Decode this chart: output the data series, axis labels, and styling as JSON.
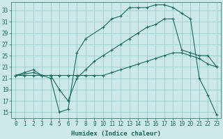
{
  "xlabel": "Humidex (Indice chaleur)",
  "bg_color": "#cce8e8",
  "grid_color": "#99cccc",
  "line_color": "#1a6b5e",
  "xlim": [
    -0.5,
    23.5
  ],
  "ylim": [
    14.0,
    34.5
  ],
  "xticks": [
    0,
    1,
    2,
    3,
    4,
    5,
    6,
    7,
    8,
    9,
    10,
    11,
    12,
    13,
    14,
    15,
    16,
    17,
    18,
    19,
    20,
    21,
    22,
    23
  ],
  "yticks": [
    15,
    17,
    19,
    21,
    23,
    25,
    27,
    29,
    31,
    33
  ],
  "curve1_x": [
    0,
    1,
    2,
    3,
    4,
    5,
    6,
    7,
    8,
    9,
    10,
    11,
    12,
    13,
    14,
    15,
    16,
    17,
    18,
    19,
    20,
    21,
    22,
    23
  ],
  "curve1_y": [
    21.5,
    22.0,
    22.5,
    21.5,
    21.5,
    19.0,
    17.0,
    21.0,
    22.5,
    24.0,
    25.0,
    26.0,
    27.0,
    28.0,
    29.0,
    30.0,
    30.5,
    31.5,
    31.5,
    26.0,
    25.5,
    25.0,
    25.0,
    23.0
  ],
  "curve2_x": [
    0,
    2,
    3,
    4,
    5,
    6,
    7,
    8,
    10,
    11,
    12,
    13,
    14,
    15,
    16,
    17,
    18,
    19,
    20,
    21,
    22,
    23
  ],
  "curve2_y": [
    21.5,
    22.0,
    21.5,
    21.0,
    15.0,
    15.5,
    25.5,
    28.0,
    30.0,
    31.5,
    32.0,
    33.5,
    33.5,
    33.5,
    34.0,
    34.0,
    33.5,
    32.5,
    31.5,
    21.0,
    18.0,
    14.5
  ],
  "curve3_x": [
    0,
    1,
    2,
    3,
    4,
    5,
    6,
    7,
    8,
    9,
    10,
    11,
    12,
    13,
    14,
    15,
    16,
    17,
    18,
    19,
    20,
    21,
    22,
    23
  ],
  "curve3_y": [
    21.5,
    21.5,
    21.5,
    21.5,
    21.5,
    21.5,
    21.5,
    21.5,
    21.5,
    21.5,
    21.5,
    22.0,
    22.5,
    23.0,
    23.5,
    24.0,
    24.5,
    25.0,
    25.5,
    25.5,
    25.0,
    24.5,
    23.5,
    23.0
  ],
  "xlabel_fontsize": 6.5,
  "tick_fontsize": 5.5,
  "marker_size": 3.5
}
